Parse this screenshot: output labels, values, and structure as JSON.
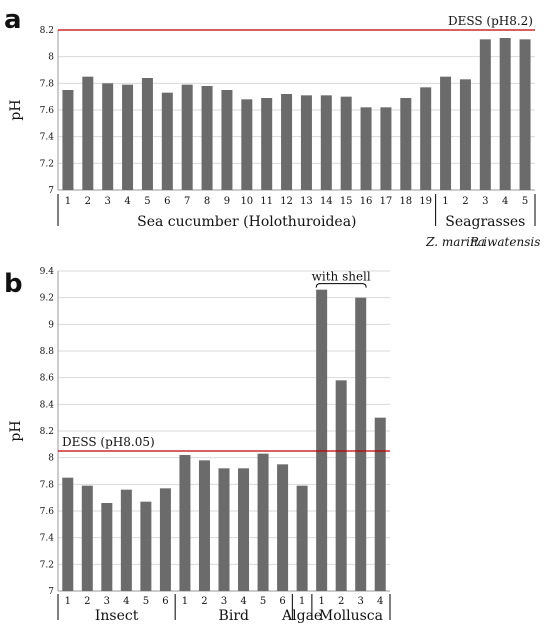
{
  "chart_data": [
    {
      "panel": "a",
      "type": "bar",
      "ylabel": "pH",
      "ylim": [
        7,
        8.2
      ],
      "yticks": [
        "7",
        "7.2",
        "7.4",
        "7.6",
        "7.8",
        "8",
        "8.2"
      ],
      "grid": true,
      "reference_line": {
        "value": 8.2,
        "label": "DESS (pH8.2)",
        "color": "#c00000"
      },
      "groups": [
        {
          "label": "Sea cucumber (Holothuroidea)",
          "categories": [
            "1",
            "2",
            "3",
            "4",
            "5",
            "6",
            "7",
            "8",
            "9",
            "10",
            "11",
            "12",
            "13",
            "14",
            "15",
            "16",
            "17",
            "18",
            "19"
          ],
          "values": [
            7.75,
            7.85,
            7.8,
            7.79,
            7.84,
            7.73,
            7.79,
            7.78,
            7.75,
            7.68,
            7.69,
            7.72,
            7.71,
            7.71,
            7.7,
            7.62,
            7.62,
            7.69,
            7.77
          ]
        },
        {
          "label": "Seagrasses",
          "categories": [
            "1",
            "2",
            "3",
            "4",
            "5"
          ],
          "values": [
            7.85,
            7.83,
            8.13,
            8.14,
            8.13
          ],
          "subgroups": [
            {
              "label": "Z. marina",
              "count": 2
            },
            {
              "label": "P. iwatensis",
              "count": 3
            }
          ]
        }
      ],
      "bar_color": "#6b6b6b"
    },
    {
      "panel": "b",
      "type": "bar",
      "ylabel": "pH",
      "ylim": [
        7,
        9.4
      ],
      "yticks": [
        "7",
        "7.2",
        "7.4",
        "7.6",
        "7.8",
        "8",
        "8.2",
        "8.4",
        "8.6",
        "8.8",
        "9",
        "9.2",
        "9.4"
      ],
      "grid": true,
      "reference_line": {
        "value": 8.05,
        "label": "DESS (pH8.05)",
        "color": "#c00000"
      },
      "groups": [
        {
          "label": "Insect",
          "categories": [
            "1",
            "2",
            "3",
            "4",
            "5",
            "6"
          ],
          "values": [
            7.85,
            7.79,
            7.66,
            7.76,
            7.67,
            7.77
          ]
        },
        {
          "label": "Bird",
          "categories": [
            "1",
            "2",
            "3",
            "4",
            "5",
            "6"
          ],
          "values": [
            8.02,
            7.98,
            7.92,
            7.92,
            8.03,
            7.95
          ]
        },
        {
          "label": "Algae",
          "categories": [
            "1"
          ],
          "values": [
            7.79
          ]
        },
        {
          "label": "Mollusca",
          "categories": [
            "1",
            "2",
            "3",
            "4"
          ],
          "values": [
            9.26,
            8.58,
            9.2,
            8.3
          ]
        }
      ],
      "annotation": {
        "text": "with shell",
        "group": "Mollusca",
        "from": 0,
        "to": 2
      },
      "bar_color": "#6b6b6b"
    }
  ]
}
